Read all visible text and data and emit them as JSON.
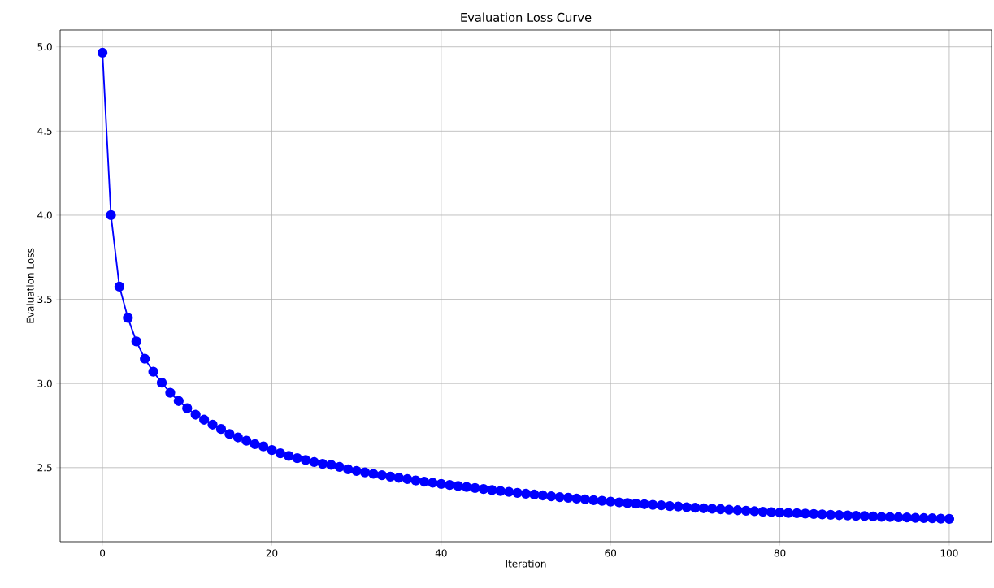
{
  "chart_data": {
    "type": "line",
    "title": "Evaluation Loss Curve",
    "xlabel": "Iteration",
    "ylabel": "Evaluation Loss",
    "x": [
      0,
      1,
      2,
      3,
      4,
      5,
      6,
      7,
      8,
      9,
      10,
      11,
      12,
      13,
      14,
      15,
      16,
      17,
      18,
      19,
      20,
      21,
      22,
      23,
      24,
      25,
      26,
      27,
      28,
      29,
      30,
      31,
      32,
      33,
      34,
      35,
      36,
      37,
      38,
      39,
      40,
      41,
      42,
      43,
      44,
      45,
      46,
      47,
      48,
      49,
      50,
      51,
      52,
      53,
      54,
      55,
      56,
      57,
      58,
      59,
      60,
      61,
      62,
      63,
      64,
      65,
      66,
      67,
      68,
      69,
      70,
      71,
      72,
      73,
      74,
      75,
      76,
      77,
      78,
      79,
      80,
      81,
      82,
      83,
      84,
      85,
      86,
      87,
      88,
      89,
      90,
      91,
      92,
      93,
      94,
      95,
      96,
      97,
      98,
      99,
      100
    ],
    "series": [
      {
        "color": "#0000ff",
        "values": [
          4.965,
          4.0,
          3.576,
          3.39,
          3.25,
          3.147,
          3.07,
          3.005,
          2.945,
          2.896,
          2.853,
          2.815,
          2.785,
          2.756,
          2.73,
          2.7,
          2.68,
          2.66,
          2.64,
          2.626,
          2.605,
          2.585,
          2.57,
          2.556,
          2.545,
          2.533,
          2.523,
          2.517,
          2.504,
          2.49,
          2.48,
          2.472,
          2.463,
          2.455,
          2.447,
          2.44,
          2.432,
          2.424,
          2.417,
          2.41,
          2.403,
          2.397,
          2.391,
          2.385,
          2.379,
          2.373,
          2.367,
          2.361,
          2.356,
          2.35,
          2.345,
          2.34,
          2.335,
          2.33,
          2.325,
          2.321,
          2.316,
          2.312,
          2.307,
          2.303,
          2.298,
          2.294,
          2.29,
          2.286,
          2.283,
          2.279,
          2.276,
          2.272,
          2.269,
          2.265,
          2.262,
          2.259,
          2.256,
          2.253,
          2.25,
          2.247,
          2.244,
          2.241,
          2.238,
          2.236,
          2.233,
          2.231,
          2.229,
          2.227,
          2.225,
          2.222,
          2.22,
          2.218,
          2.216,
          2.214,
          2.212,
          2.21,
          2.208,
          2.207,
          2.205,
          2.204,
          2.202,
          2.2,
          2.199,
          2.197,
          2.196
        ]
      }
    ],
    "xlim": [
      -5,
      105
    ],
    "ylim": [
      2.06,
      5.1
    ],
    "xticks": [
      0,
      20,
      40,
      60,
      80,
      100
    ],
    "yticks": [
      2.5,
      {
        "value": 3,
        "label": "3.0"
      },
      3.5,
      {
        "value": 4,
        "label": "4.0"
      },
      4.5,
      {
        "value": 5,
        "label": "5.0"
      }
    ],
    "grid": true,
    "marker": "circle",
    "line_style": "solid"
  }
}
